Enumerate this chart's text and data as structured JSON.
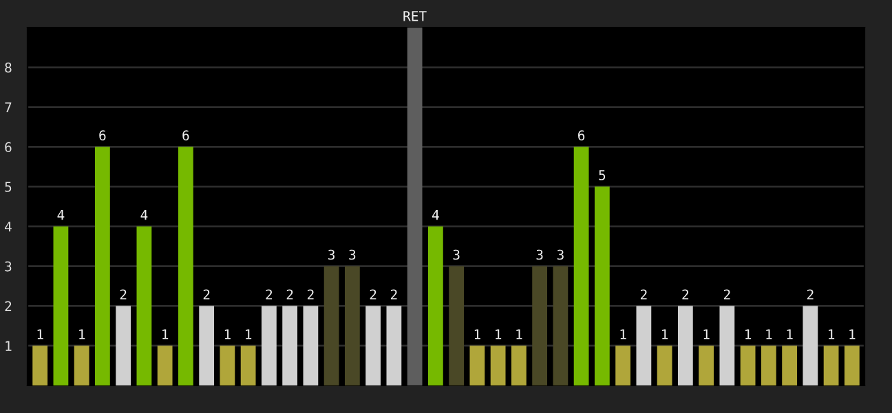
{
  "chart_data": {
    "type": "bar",
    "categories": [
      null,
      null,
      null,
      null,
      null,
      null,
      null,
      null,
      null,
      null,
      null,
      null,
      null,
      null,
      null,
      null,
      null,
      null,
      null,
      null,
      null,
      null,
      null,
      null,
      null,
      null,
      null,
      null,
      null,
      null,
      null,
      null,
      null,
      null,
      null,
      null,
      null,
      null,
      null,
      null
    ],
    "values": [
      1,
      4,
      1,
      6,
      2,
      4,
      1,
      6,
      2,
      1,
      1,
      2,
      2,
      2,
      3,
      3,
      2,
      2,
      9,
      4,
      3,
      1,
      1,
      1,
      3,
      3,
      6,
      5,
      1,
      2,
      1,
      2,
      1,
      2,
      1,
      1,
      1,
      2,
      1,
      1
    ],
    "value_labels": [
      "1",
      "4",
      "1",
      "6",
      "2",
      "4",
      "1",
      "6",
      "2",
      "1",
      "1",
      "2",
      "2",
      "2",
      "3",
      "3",
      "2",
      "2",
      "RET",
      "4",
      "3",
      "1",
      "1",
      "1",
      "3",
      "3",
      "6",
      "5",
      "1",
      "2",
      "1",
      "2",
      "1",
      "2",
      "1",
      "1",
      "1",
      "2",
      "1",
      "1"
    ],
    "colors": [
      "#b0a63a",
      "#76b900",
      "#b0a63a",
      "#76b900",
      "#d0d0d0",
      "#76b900",
      "#b0a63a",
      "#76b900",
      "#d0d0d0",
      "#b0a63a",
      "#b0a63a",
      "#d0d0d0",
      "#d0d0d0",
      "#d0d0d0",
      "#4a4826",
      "#4a4826",
      "#d0d0d0",
      "#d0d0d0",
      "#5e5e5e",
      "#76b900",
      "#4a4826",
      "#b0a63a",
      "#b0a63a",
      "#b0a63a",
      "#4a4826",
      "#4a4826",
      "#76b900",
      "#76b900",
      "#b0a63a",
      "#d0d0d0",
      "#b0a63a",
      "#d0d0d0",
      "#b0a63a",
      "#d0d0d0",
      "#b0a63a",
      "#b0a63a",
      "#b0a63a",
      "#d0d0d0",
      "#b0a63a",
      "#b0a63a"
    ],
    "ylim": [
      0,
      9
    ],
    "yticks": [
      1,
      2,
      3,
      4,
      5,
      6,
      7,
      8
    ],
    "grid": "y",
    "legend": false
  }
}
